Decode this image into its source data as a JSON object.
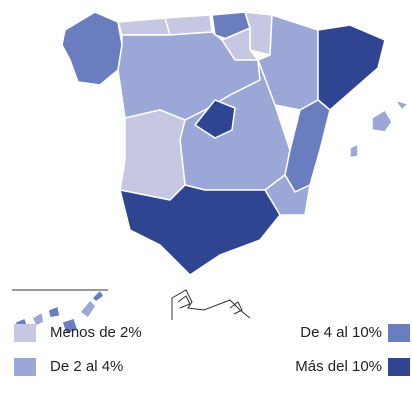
{
  "legend": [
    {
      "label": "Menos de 2%",
      "color": "#c6c7e3"
    },
    {
      "label": "De 2 al 4%",
      "color": "#9ba7d6"
    },
    {
      "label": "De 4 al 10%",
      "color": "#6a7ebf"
    },
    {
      "label": "Más del 10%",
      "color": "#2f4592"
    }
  ]
}
